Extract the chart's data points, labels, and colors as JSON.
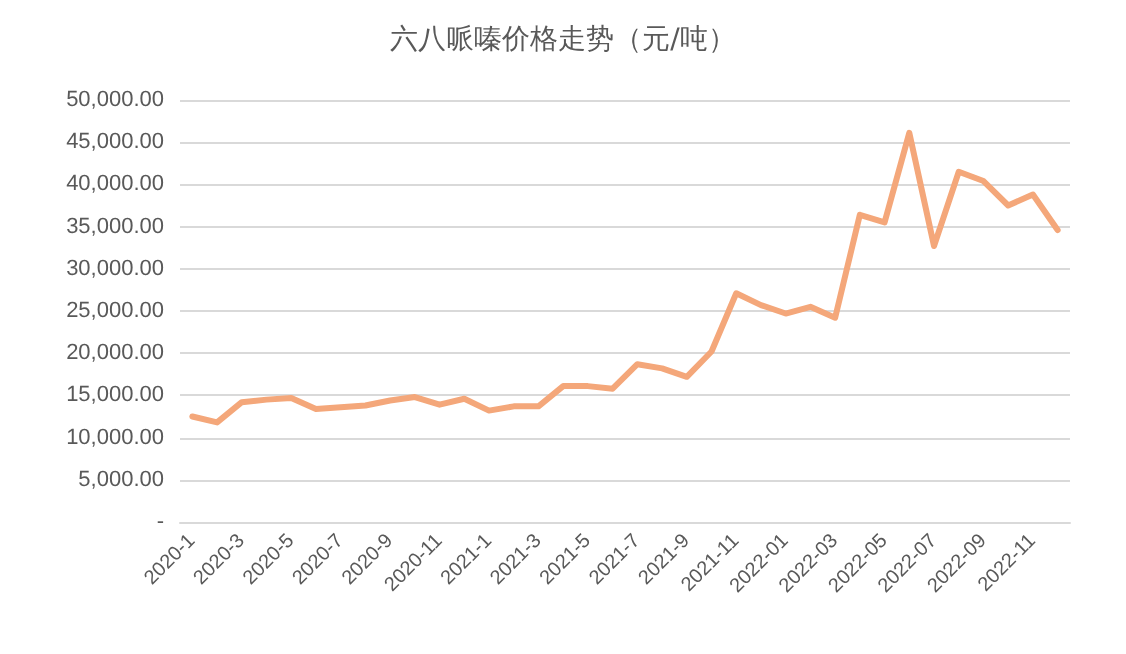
{
  "chart_data": {
    "type": "line",
    "title": "六八哌嗪价格走势（元/吨）",
    "categories": [
      "2020-1",
      null,
      "2020-3",
      null,
      "2020-5",
      null,
      "2020-7",
      null,
      "2020-9",
      null,
      "2020-11",
      null,
      "2021-1",
      null,
      "2021-3",
      null,
      "2021-5",
      null,
      "2021-7",
      null,
      "2021-9",
      null,
      "2021-11",
      null,
      "2022-01",
      null,
      "2022-03",
      null,
      "2022-05",
      null,
      "2022-07",
      null,
      "2022-09",
      null,
      "2022-11",
      null
    ],
    "series": [
      {
        "color": "#f4a77a",
        "values": [
          12500,
          11800,
          14200,
          14500,
          14700,
          13400,
          13600,
          13800,
          14400,
          14800,
          13900,
          14600,
          13200,
          13700,
          13700,
          16100,
          16100,
          15800,
          18700,
          18200,
          17200,
          20200,
          27100,
          25700,
          24700,
          25500,
          24200,
          36400,
          35500,
          46100,
          32700,
          41500,
          40400,
          37500,
          38800,
          34600
        ]
      }
    ],
    "ylim": [
      0,
      50000
    ],
    "yticks": [
      {
        "value": 0,
        "label": "-"
      },
      {
        "value": 5000,
        "label": "5,000.00"
      },
      {
        "value": 10000,
        "label": "10,000.00"
      },
      {
        "value": 15000,
        "label": "15,000.00"
      },
      {
        "value": 20000,
        "label": "20,000.00"
      },
      {
        "value": 25000,
        "label": "25,000.00"
      },
      {
        "value": 30000,
        "label": "30,000.00"
      },
      {
        "value": 35000,
        "label": "35,000.00"
      },
      {
        "value": 40000,
        "label": "40,000.00"
      },
      {
        "value": 45000,
        "label": "45,000.00"
      },
      {
        "value": 50000,
        "label": "50,000.00"
      }
    ],
    "grid": "y",
    "marker": "none",
    "line_style": "solid"
  }
}
